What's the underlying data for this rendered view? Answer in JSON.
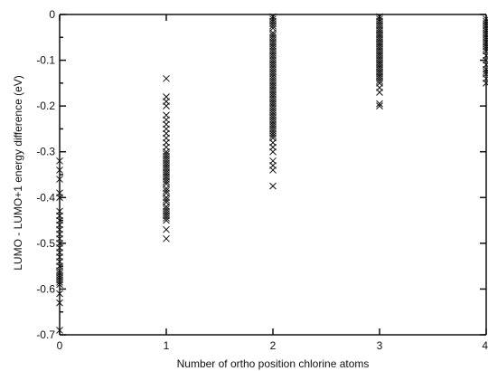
{
  "chart_data": {
    "type": "scatter",
    "title": "",
    "xlabel": "Number of ortho position chlorine atoms",
    "ylabel": "LUMO - LUMO+1 energy difference (eV)",
    "xlim": [
      0,
      4
    ],
    "ylim": [
      -0.7,
      0
    ],
    "xticks": [
      "0",
      "1",
      "2",
      "3",
      "4"
    ],
    "yticks": [
      "0",
      "-0.1",
      "-0.2",
      "-0.3",
      "-0.4",
      "-0.5",
      "-0.6",
      "-0.7"
    ],
    "marker": "x",
    "grid": false,
    "series": [
      {
        "x": [
          0,
          0,
          0,
          0,
          0,
          0,
          0,
          0,
          0,
          0,
          0,
          0,
          0,
          0,
          0,
          0,
          0,
          0,
          0,
          0,
          0,
          0,
          0,
          0,
          0,
          0,
          0,
          0
        ],
        "y": [
          -0.32,
          -0.34,
          -0.36,
          -0.39,
          -0.4,
          -0.43,
          -0.44,
          -0.45,
          -0.46,
          -0.47,
          -0.48,
          -0.49,
          -0.5,
          -0.51,
          -0.52,
          -0.53,
          -0.54,
          -0.55,
          -0.56,
          -0.565,
          -0.57,
          -0.575,
          -0.58,
          -0.585,
          -0.59,
          -0.61,
          -0.63,
          -0.69
        ]
      },
      {
        "x": [
          1,
          1,
          1,
          1,
          1,
          1,
          1,
          1,
          1,
          1,
          1,
          1,
          1,
          1,
          1,
          1,
          1,
          1,
          1,
          1,
          1,
          1,
          1,
          1,
          1,
          1,
          1,
          1,
          1,
          1,
          1,
          1,
          1,
          1,
          1,
          1,
          1,
          1,
          1,
          1,
          1,
          1
        ],
        "y": [
          -0.14,
          -0.18,
          -0.19,
          -0.2,
          -0.22,
          -0.23,
          -0.24,
          -0.25,
          -0.26,
          -0.27,
          -0.28,
          -0.29,
          -0.3,
          -0.305,
          -0.31,
          -0.315,
          -0.32,
          -0.325,
          -0.33,
          -0.335,
          -0.34,
          -0.345,
          -0.35,
          -0.355,
          -0.36,
          -0.365,
          -0.37,
          -0.38,
          -0.385,
          -0.39,
          -0.4,
          -0.405,
          -0.41,
          -0.42,
          -0.425,
          -0.43,
          -0.435,
          -0.44,
          -0.445,
          -0.45,
          -0.47,
          -0.49
        ]
      },
      {
        "x": [
          2,
          2,
          2,
          2,
          2,
          2,
          2,
          2,
          2,
          2,
          2,
          2,
          2,
          2,
          2,
          2,
          2,
          2,
          2,
          2,
          2,
          2,
          2,
          2,
          2,
          2,
          2,
          2,
          2,
          2,
          2,
          2,
          2,
          2,
          2,
          2,
          2,
          2,
          2,
          2,
          2,
          2,
          2,
          2,
          2,
          2,
          2,
          2,
          2,
          2,
          2,
          2,
          2,
          2,
          2,
          2,
          2,
          2,
          2,
          2
        ],
        "y": [
          -0.005,
          -0.01,
          -0.015,
          -0.02,
          -0.025,
          -0.03,
          -0.04,
          -0.045,
          -0.05,
          -0.055,
          -0.06,
          -0.065,
          -0.07,
          -0.075,
          -0.08,
          -0.085,
          -0.09,
          -0.095,
          -0.1,
          -0.105,
          -0.11,
          -0.115,
          -0.12,
          -0.125,
          -0.13,
          -0.135,
          -0.14,
          -0.145,
          -0.15,
          -0.155,
          -0.16,
          -0.165,
          -0.17,
          -0.175,
          -0.18,
          -0.185,
          -0.19,
          -0.195,
          -0.2,
          -0.205,
          -0.21,
          -0.215,
          -0.22,
          -0.225,
          -0.23,
          -0.235,
          -0.24,
          -0.245,
          -0.25,
          -0.255,
          -0.26,
          -0.265,
          -0.27,
          -0.28,
          -0.29,
          -0.3,
          -0.32,
          -0.33,
          -0.34,
          -0.375
        ]
      },
      {
        "x": [
          3,
          3,
          3,
          3,
          3,
          3,
          3,
          3,
          3,
          3,
          3,
          3,
          3,
          3,
          3,
          3,
          3,
          3,
          3,
          3,
          3,
          3,
          3,
          3,
          3,
          3,
          3,
          3,
          3,
          3,
          3,
          3,
          3,
          3,
          3,
          3,
          3,
          3,
          3,
          3,
          3,
          3,
          3,
          3,
          3
        ],
        "y": [
          -0.005,
          -0.01,
          -0.015,
          -0.02,
          -0.025,
          -0.03,
          -0.035,
          -0.04,
          -0.045,
          -0.05,
          -0.055,
          -0.06,
          -0.065,
          -0.07,
          -0.075,
          -0.08,
          -0.085,
          -0.09,
          -0.095,
          -0.1,
          -0.105,
          -0.11,
          -0.115,
          -0.12,
          -0.125,
          -0.13,
          -0.135,
          -0.14,
          -0.145,
          -0.15,
          -0.16,
          -0.17,
          -0.195,
          -0.2,
          -0.035,
          -0.045,
          -0.055,
          -0.065,
          -0.075,
          -0.085,
          -0.095,
          -0.105,
          -0.115,
          -0.125,
          -0.135
        ]
      },
      {
        "x": [
          4,
          4,
          4,
          4,
          4,
          4,
          4,
          4,
          4,
          4,
          4,
          4,
          4,
          4,
          4,
          4,
          4,
          4,
          4,
          4,
          4,
          4,
          4
        ],
        "y": [
          -0.01,
          -0.015,
          -0.02,
          -0.025,
          -0.03,
          -0.035,
          -0.04,
          -0.045,
          -0.05,
          -0.055,
          -0.06,
          -0.065,
          -0.07,
          -0.075,
          -0.08,
          -0.09,
          -0.1,
          -0.11,
          -0.12,
          -0.125,
          -0.13,
          -0.14,
          -0.15
        ]
      }
    ]
  }
}
